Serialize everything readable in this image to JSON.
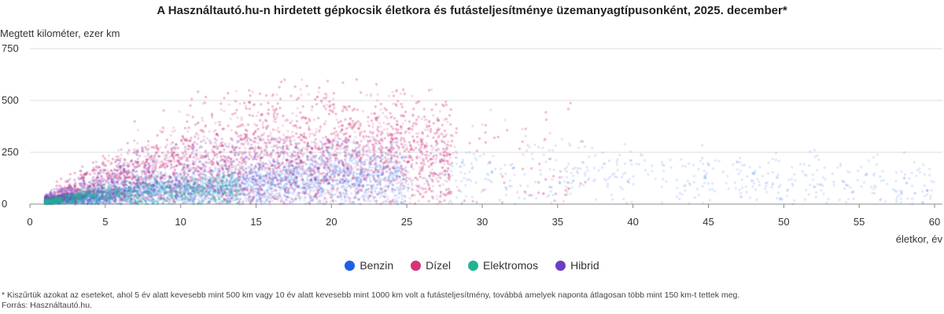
{
  "chart_data": {
    "type": "scatter",
    "title": "A Használtautó.hu-n hirdetett gépkocsik életkora és futásteljesítménye üzemanyagtípusonként, 2025. december*",
    "ylabel": "Megtett kilométer, ezer km",
    "xlabel": "életkor, év",
    "xlim": [
      0,
      60
    ],
    "ylim": [
      0,
      750
    ],
    "x_ticks": [
      0,
      5,
      10,
      15,
      20,
      25,
      30,
      35,
      40,
      45,
      50,
      55,
      60
    ],
    "y_ticks": [
      0,
      250,
      500,
      750
    ],
    "grid": "horizontal",
    "legend_position": "bottom",
    "series": [
      {
        "name": "Benzin",
        "color": "#1f5fe6",
        "age_range": [
          1,
          60
        ],
        "mileage_range": [
          0,
          600
        ],
        "typical_mileage_by_age": [
          [
            1,
            15
          ],
          [
            5,
            45
          ],
          [
            10,
            75
          ],
          [
            15,
            100
          ],
          [
            20,
            130
          ],
          [
            25,
            140
          ],
          [
            30,
            145
          ],
          [
            40,
            140
          ],
          [
            50,
            110
          ],
          [
            60,
            100
          ]
        ]
      },
      {
        "name": "Dízel",
        "color": "#d6337a",
        "age_range": [
          1,
          37
        ],
        "mileage_range": [
          0,
          620
        ],
        "typical_mileage_by_age": [
          [
            1,
            25
          ],
          [
            5,
            110
          ],
          [
            10,
            200
          ],
          [
            15,
            250
          ],
          [
            20,
            265
          ],
          [
            25,
            250
          ],
          [
            30,
            230
          ],
          [
            35,
            200
          ]
        ]
      },
      {
        "name": "Elektromos",
        "color": "#22b392",
        "age_range": [
          1,
          14
        ],
        "mileage_range": [
          0,
          150
        ],
        "typical_mileage_by_age": [
          [
            1,
            12
          ],
          [
            3,
            30
          ],
          [
            5,
            45
          ],
          [
            8,
            60
          ],
          [
            12,
            70
          ]
        ]
      },
      {
        "name": "Hibrid",
        "color": "#6a3fc2",
        "age_range": [
          1,
          22
        ],
        "mileage_range": [
          0,
          320
        ],
        "typical_mileage_by_age": [
          [
            1,
            20
          ],
          [
            3,
            60
          ],
          [
            5,
            100
          ],
          [
            8,
            140
          ],
          [
            12,
            170
          ],
          [
            18,
            180
          ]
        ]
      }
    ]
  },
  "footnote": {
    "note": "* Kiszűrtük azokat az eseteket, ahol 5 év alatt kevesebb mint 500 km vagy 10 év alatt kevesebb mint 1000 km volt a futásteljesítmény, továbbá amelyek naponta átlagosan több mint 150 km-t tettek meg.",
    "source": "Forrás: Használtautó.hu."
  }
}
